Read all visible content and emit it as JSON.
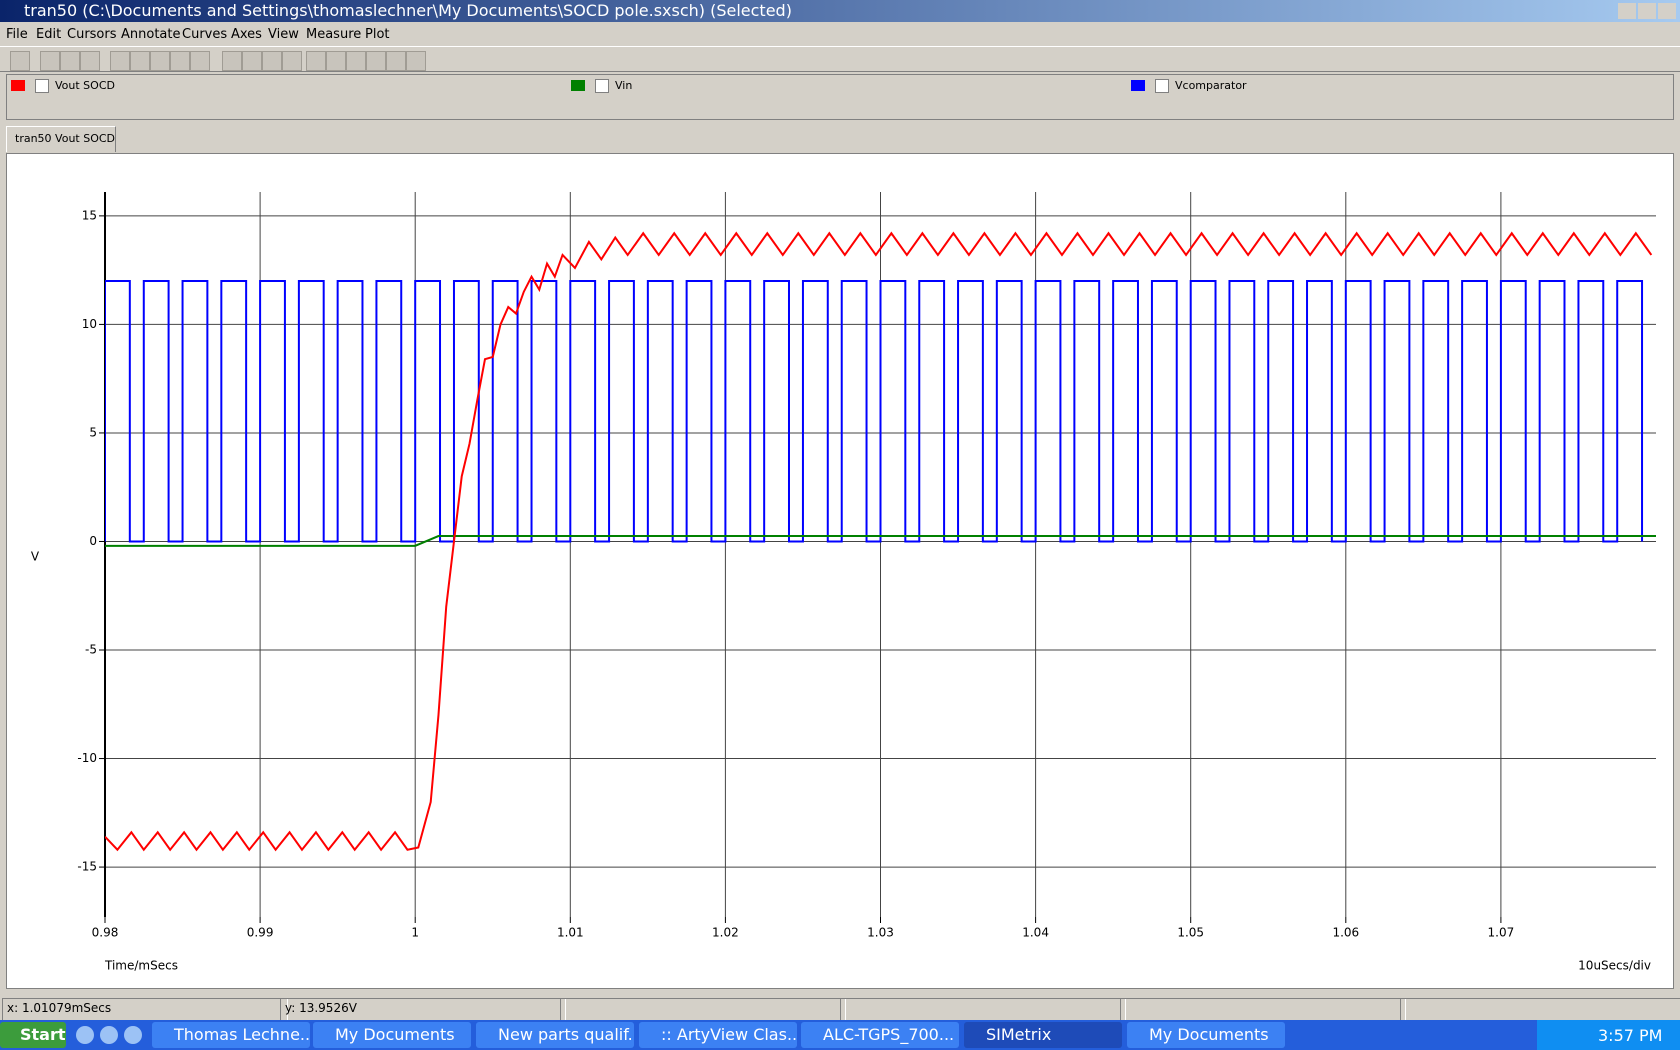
{
  "window": {
    "title": "tran50 (C:\\Documents and Settings\\thomaslechner\\My Documents\\SOCD pole.sxsch) (Selected)",
    "menu": [
      "File",
      "Edit",
      "Cursors",
      "Annotate",
      "Curves",
      "Axes",
      "View",
      "Measure",
      "Plot"
    ],
    "tab": "tran50 Vout SOCD",
    "status": [
      "x: 1.01079mSecs",
      "y: 13.9526V"
    ],
    "taskbar": {
      "start": "Start",
      "items": [
        "Thomas Lechne...",
        "My Documents",
        "New parts qualif...",
        ":: ArtyView Clas...",
        "ALC-TGPS_700...",
        "SIMetrix",
        "My Documents"
      ],
      "clock": "3:57 PM"
    }
  },
  "chart_data": {
    "type": "line",
    "xlabel": "Time/mSecs",
    "ylabel": "V",
    "scale_note": "10uSecs/div",
    "xlim": [
      0.98,
      1.08
    ],
    "ylim": [
      -17.3,
      16.1
    ],
    "xticks": [
      0.98,
      0.99,
      1,
      1.01,
      1.02,
      1.03,
      1.04,
      1.05,
      1.06,
      1.07
    ],
    "yticks": [
      15,
      10,
      5,
      0,
      -5,
      -10,
      -15
    ],
    "grid": true,
    "series": [
      {
        "name": "Vout SOCD",
        "color": "#ff0000",
        "x": [
          0.98,
          0.9808,
          0.9817,
          0.9825,
          0.9834,
          0.9842,
          0.9851,
          0.9859,
          0.9868,
          0.9876,
          0.9885,
          0.9893,
          0.9902,
          0.991,
          0.9919,
          0.9927,
          0.9936,
          0.9944,
          0.9953,
          0.9961,
          0.997,
          0.9978,
          0.9987,
          0.9995,
          1.0002,
          1.001,
          1.0015,
          1.002,
          1.0025,
          1.003,
          1.0035,
          1.004,
          1.0045,
          1.005,
          1.0055,
          1.006,
          1.0065,
          1.007,
          1.0075,
          1.008,
          1.0085,
          1.009,
          1.0095,
          1.0103,
          1.0112,
          1.012,
          1.0129,
          1.0137,
          1.0147,
          1.0157,
          1.0167,
          1.0177,
          1.0187,
          1.0197,
          1.0207,
          1.0217,
          1.0227,
          1.0237,
          1.0247,
          1.0257,
          1.0267,
          1.0277,
          1.0287,
          1.0297,
          1.0307,
          1.0317,
          1.0327,
          1.0337,
          1.0347,
          1.0357,
          1.0367,
          1.0377,
          1.0387,
          1.0397,
          1.0407,
          1.0417,
          1.0427,
          1.0437,
          1.0447,
          1.0457,
          1.0467,
          1.0477,
          1.0487,
          1.0497,
          1.0507,
          1.0517,
          1.0527,
          1.0537,
          1.0547,
          1.0557,
          1.0567,
          1.0577,
          1.0587,
          1.0597,
          1.0607,
          1.0617,
          1.0627,
          1.0637,
          1.0647,
          1.0657,
          1.0667,
          1.0677,
          1.0687,
          1.0697,
          1.0707,
          1.0717,
          1.0727,
          1.0737,
          1.0747,
          1.0757,
          1.0767,
          1.0777,
          1.0787,
          1.0797
        ],
        "values": [
          -13.6,
          -14.2,
          -13.4,
          -14.2,
          -13.4,
          -14.2,
          -13.4,
          -14.2,
          -13.4,
          -14.2,
          -13.4,
          -14.2,
          -13.4,
          -14.2,
          -13.4,
          -14.2,
          -13.4,
          -14.2,
          -13.4,
          -14.2,
          -13.4,
          -14.2,
          -13.4,
          -14.2,
          -14.1,
          -12,
          -8,
          -3,
          0,
          3,
          4.5,
          6.5,
          8.4,
          8.5,
          10,
          10.8,
          10.5,
          11.5,
          12.2,
          11.6,
          12.8,
          12.2,
          13.2,
          12.6,
          13.8,
          13,
          14,
          13.2,
          14.2,
          13.2,
          14.2,
          13.2,
          14.2,
          13.2,
          14.2,
          13.2,
          14.2,
          13.2,
          14.2,
          13.2,
          14.2,
          13.2,
          14.2,
          13.2,
          14.2,
          13.2,
          14.2,
          13.2,
          14.2,
          13.2,
          14.2,
          13.2,
          14.2,
          13.2,
          14.2,
          13.2,
          14.2,
          13.2,
          14.2,
          13.2,
          14.2,
          13.2,
          14.2,
          13.2,
          14.2,
          13.2,
          14.2,
          13.2,
          14.2,
          13.2,
          14.2,
          13.2,
          14.2,
          13.2,
          14.2,
          13.2,
          14.2,
          13.2,
          14.2,
          13.2,
          14.2,
          13.2,
          14.2,
          13.2,
          14.2,
          13.2,
          14.2,
          13.2,
          14.2,
          13.2,
          14.2,
          13.2,
          14.2,
          13.2
        ]
      },
      {
        "name": "Vin",
        "color": "#008000",
        "x": [
          0.98,
          1,
          1.0015,
          1.08
        ],
        "values": [
          -0.2,
          -0.2,
          0.25,
          0.25
        ]
      },
      {
        "name": "Vcomparator",
        "color": "#0000ff",
        "x": [
          0.98,
          0.98,
          0.9816,
          0.9816,
          0.9825,
          0.9825,
          0.9841,
          0.9841,
          0.985,
          0.985,
          0.9866,
          0.9866,
          0.9875,
          0.9875,
          0.9891,
          0.9891,
          0.99,
          0.99,
          0.9916,
          0.9916,
          0.9925,
          0.9925,
          0.9941,
          0.9941,
          0.995,
          0.995,
          0.9966,
          0.9966,
          0.9975,
          0.9975,
          0.9991,
          0.9991,
          1,
          1,
          1.0016,
          1.0016,
          1.0025,
          1.0025,
          1.0041,
          1.0041,
          1.005,
          1.005,
          1.0066,
          1.0066,
          1.0075,
          1.0075,
          1.0091,
          1.0091,
          1.01,
          1.01,
          1.0116,
          1.0116,
          1.0125,
          1.0125,
          1.0141,
          1.0141,
          1.015,
          1.015,
          1.0166,
          1.0166,
          1.0175,
          1.0175,
          1.0191,
          1.0191,
          1.02,
          1.02,
          1.0216,
          1.0216,
          1.0225,
          1.0225,
          1.0241,
          1.0241,
          1.025,
          1.025,
          1.0266,
          1.0266,
          1.0275,
          1.0275,
          1.0291,
          1.0291,
          1.03,
          1.03,
          1.0316,
          1.0316,
          1.0325,
          1.0325,
          1.0341,
          1.0341,
          1.035,
          1.035,
          1.0366,
          1.0366,
          1.0375,
          1.0375,
          1.0391,
          1.0391,
          1.04,
          1.04,
          1.0416,
          1.0416,
          1.0425,
          1.0425,
          1.0441,
          1.0441,
          1.045,
          1.045,
          1.0466,
          1.0466,
          1.0475,
          1.0475,
          1.0491,
          1.0491,
          1.05,
          1.05,
          1.0516,
          1.0516,
          1.0525,
          1.0525,
          1.0541,
          1.0541,
          1.055,
          1.055,
          1.0566,
          1.0566,
          1.0575,
          1.0575,
          1.0591,
          1.0591,
          1.06,
          1.06,
          1.0616,
          1.0616,
          1.0625,
          1.0625,
          1.0641,
          1.0641,
          1.065,
          1.065,
          1.0666,
          1.0666,
          1.0675,
          1.0675,
          1.0691,
          1.0691,
          1.07,
          1.07,
          1.0716,
          1.0716,
          1.0725,
          1.0725,
          1.0741,
          1.0741,
          1.075,
          1.075,
          1.0766,
          1.0766,
          1.0775,
          1.0775,
          1.0791,
          1.0791
        ],
        "values": [
          0,
          12,
          12,
          0,
          0,
          12,
          12,
          0,
          0,
          12,
          12,
          0,
          0,
          12,
          12,
          0,
          0,
          12,
          12,
          0,
          0,
          12,
          12,
          0,
          0,
          12,
          12,
          0,
          0,
          12,
          12,
          0,
          0,
          12,
          12,
          0,
          0,
          12,
          12,
          0,
          0,
          12,
          12,
          0,
          0,
          12,
          12,
          0,
          0,
          12,
          12,
          0,
          0,
          12,
          12,
          0,
          0,
          12,
          12,
          0,
          0,
          12,
          12,
          0,
          0,
          12,
          12,
          0,
          0,
          12,
          12,
          0,
          0,
          12,
          12,
          0,
          0,
          12,
          12,
          0,
          0,
          12,
          12,
          0,
          0,
          12,
          12,
          0,
          0,
          12,
          12,
          0,
          0,
          12,
          12,
          0,
          0,
          12,
          12,
          0,
          0,
          12,
          12,
          0,
          0,
          12,
          12,
          0,
          0,
          12,
          12,
          0,
          0,
          12,
          12,
          0,
          0,
          12,
          12,
          0,
          0,
          12,
          12,
          0,
          0,
          12,
          12,
          0,
          0,
          12,
          12,
          0,
          0,
          12,
          12,
          0,
          0,
          12,
          12,
          0,
          0,
          12,
          12,
          0,
          0,
          12,
          12,
          0,
          0,
          12,
          12,
          0,
          0,
          12,
          12,
          0,
          0,
          12,
          12,
          0
        ]
      }
    ]
  }
}
